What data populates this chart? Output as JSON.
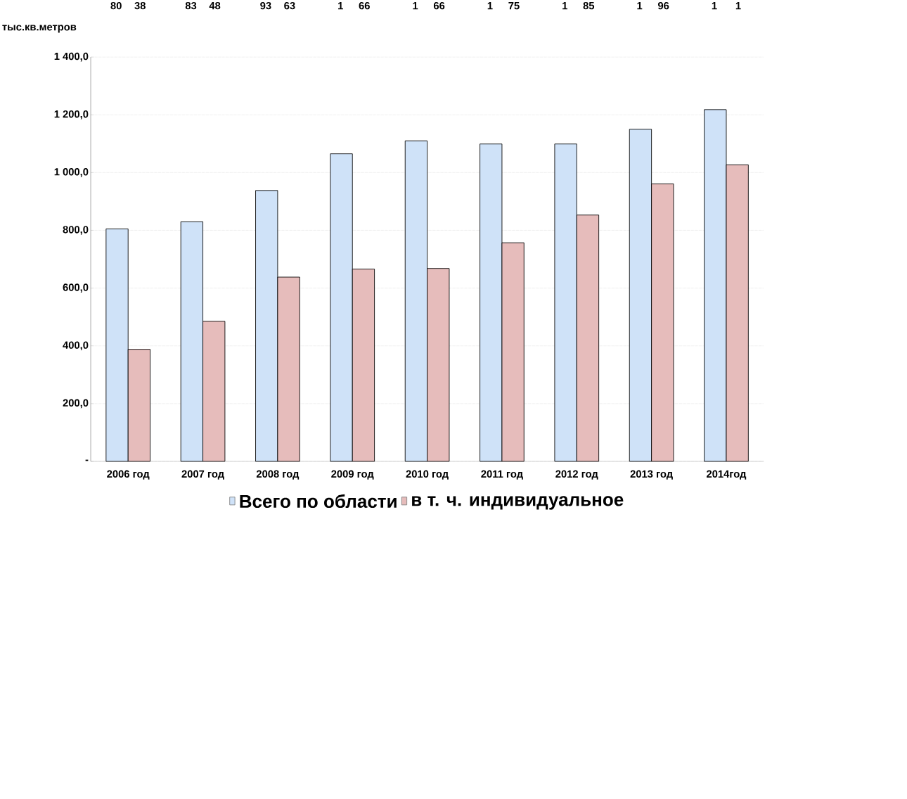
{
  "chart_data": {
    "type": "bar",
    "ylabel": "тыс.кв.метров",
    "categories": [
      "2006 год",
      "2007 год",
      "2008 год",
      "2009 год",
      "2010 год",
      "2011 год",
      "2012 год",
      "2013 год",
      "2014год"
    ],
    "series": [
      {
        "name": "Всего по области",
        "color": "#cfe2f8",
        "values": [
          805,
          830,
          938,
          1065,
          1110,
          1099,
          1099,
          1150,
          1218
        ]
      },
      {
        "name": "в т. ч. индивидуальное",
        "color": "#e6bcbb",
        "values": [
          388,
          485,
          638,
          666,
          668,
          757,
          853,
          961,
          1027
        ]
      }
    ],
    "ylim": [
      0,
      1400
    ],
    "yticks": [
      {
        "value": 0,
        "label": "-"
      },
      {
        "value": 200,
        "label": "200,0"
      },
      {
        "value": 400,
        "label": "400,0"
      },
      {
        "value": 600,
        "label": "600,0"
      },
      {
        "value": 800,
        "label": "800,0"
      },
      {
        "value": 1000,
        "label": "1 000,0"
      },
      {
        "value": 1200,
        "label": "1 200,0"
      },
      {
        "value": 1400,
        "label": "1 400,0"
      }
    ],
    "grid": "y",
    "legend": "bottom",
    "annotations": [
      "80",
      "38",
      "83",
      "48",
      "93",
      "63",
      "1",
      "66",
      "1",
      "66",
      "1",
      "75",
      "1",
      "85",
      "1",
      "96",
      "1",
      "1"
    ]
  }
}
